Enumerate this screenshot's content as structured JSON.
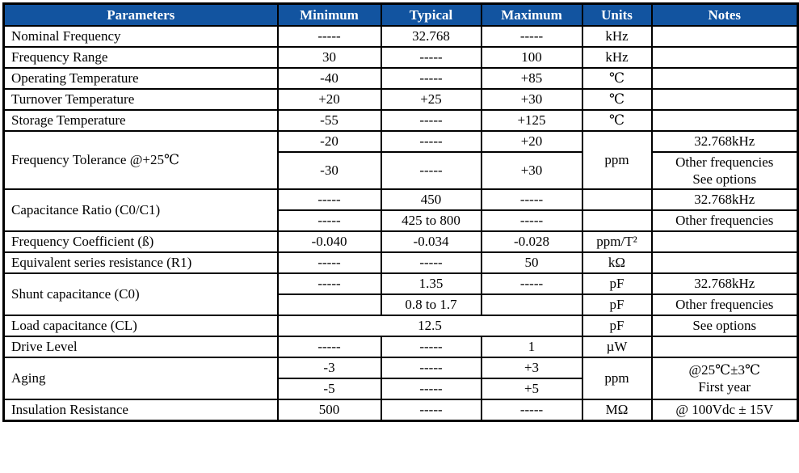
{
  "table": {
    "header_bg": "#1254a0",
    "header_fg": "#ffffff",
    "border_color": "#000000",
    "columns": [
      "Parameters",
      "Minimum",
      "Typical",
      "Maximum",
      "Units",
      "Notes"
    ],
    "rows": [
      [
        {
          "t": "Nominal Frequency",
          "cls": "param"
        },
        {
          "t": "-----"
        },
        {
          "t": "32.768"
        },
        {
          "t": "-----"
        },
        {
          "t": "kHz"
        },
        {
          "t": ""
        }
      ],
      [
        {
          "t": "Frequency Range",
          "cls": "param"
        },
        {
          "t": "30"
        },
        {
          "t": "-----"
        },
        {
          "t": "100"
        },
        {
          "t": "kHz"
        },
        {
          "t": ""
        }
      ],
      [
        {
          "t": "Operating Temperature",
          "cls": "param"
        },
        {
          "t": "-40"
        },
        {
          "t": "-----"
        },
        {
          "t": "+85"
        },
        {
          "t": "℃"
        },
        {
          "t": ""
        }
      ],
      [
        {
          "t": "Turnover Temperature",
          "cls": "param"
        },
        {
          "t": "+20"
        },
        {
          "t": "+25"
        },
        {
          "t": "+30"
        },
        {
          "t": "℃"
        },
        {
          "t": ""
        }
      ],
      [
        {
          "t": "Storage Temperature",
          "cls": "param"
        },
        {
          "t": "-55"
        },
        {
          "t": "-----"
        },
        {
          "t": "+125"
        },
        {
          "t": "℃"
        },
        {
          "t": ""
        }
      ],
      [
        {
          "t": "Frequency Tolerance @+25℃",
          "cls": "param",
          "rs": 2
        },
        {
          "t": "-20"
        },
        {
          "t": "-----"
        },
        {
          "t": "+20"
        },
        {
          "t": "ppm",
          "rs": 2
        },
        {
          "t": "32.768kHz"
        }
      ],
      [
        {
          "t": "-30"
        },
        {
          "t": "-----"
        },
        {
          "t": "+30"
        },
        {
          "t": "Other frequencies\nSee options"
        }
      ],
      [
        {
          "t": "Capacitance Ratio (C0/C1)",
          "cls": "param",
          "rs": 2
        },
        {
          "t": "-----"
        },
        {
          "t": "450"
        },
        {
          "t": "-----"
        },
        {
          "t": ""
        },
        {
          "t": "32.768kHz"
        }
      ],
      [
        {
          "t": "-----"
        },
        {
          "t": "425 to 800"
        },
        {
          "t": "-----"
        },
        {
          "t": ""
        },
        {
          "t": "Other frequencies"
        }
      ],
      [
        {
          "t": "Frequency Coefficient (ß)",
          "cls": "param"
        },
        {
          "t": "-0.040"
        },
        {
          "t": "-0.034"
        },
        {
          "t": "-0.028"
        },
        {
          "t": "ppm/T²"
        },
        {
          "t": ""
        }
      ],
      [
        {
          "t": "Equivalent series resistance (R1)",
          "cls": "param"
        },
        {
          "t": "-----"
        },
        {
          "t": "-----"
        },
        {
          "t": "50"
        },
        {
          "t": "kΩ"
        },
        {
          "t": ""
        }
      ],
      [
        {
          "t": "Shunt capacitance (C0)",
          "cls": "param",
          "rs": 2
        },
        {
          "t": "-----"
        },
        {
          "t": "1.35"
        },
        {
          "t": "-----"
        },
        {
          "t": "pF"
        },
        {
          "t": "32.768kHz"
        }
      ],
      [
        {
          "t": ""
        },
        {
          "t": "0.8 to 1.7"
        },
        {
          "t": ""
        },
        {
          "t": "pF"
        },
        {
          "t": "Other frequencies"
        }
      ],
      [
        {
          "t": "Load capacitance (CL)",
          "cls": "param"
        },
        {
          "t": "12.5",
          "cs": 3
        },
        {
          "t": "pF"
        },
        {
          "t": "See options"
        }
      ],
      [
        {
          "t": "Drive Level",
          "cls": "param"
        },
        {
          "t": "-----"
        },
        {
          "t": "-----"
        },
        {
          "t": "1"
        },
        {
          "t": "µW"
        },
        {
          "t": ""
        }
      ],
      [
        {
          "t": "Aging",
          "cls": "param",
          "rs": 2
        },
        {
          "t": "-3"
        },
        {
          "t": "-----"
        },
        {
          "t": "+3"
        },
        {
          "t": "ppm",
          "rs": 2
        },
        {
          "t": "@25℃±3℃\nFirst year",
          "rs": 2
        }
      ],
      [
        {
          "t": "-5"
        },
        {
          "t": "-----"
        },
        {
          "t": "+5"
        }
      ],
      [
        {
          "t": "Insulation Resistance",
          "cls": "param"
        },
        {
          "t": "500"
        },
        {
          "t": "-----"
        },
        {
          "t": "-----"
        },
        {
          "t": "MΩ"
        },
        {
          "t": "@ 100Vdc ± 15V"
        }
      ]
    ]
  }
}
